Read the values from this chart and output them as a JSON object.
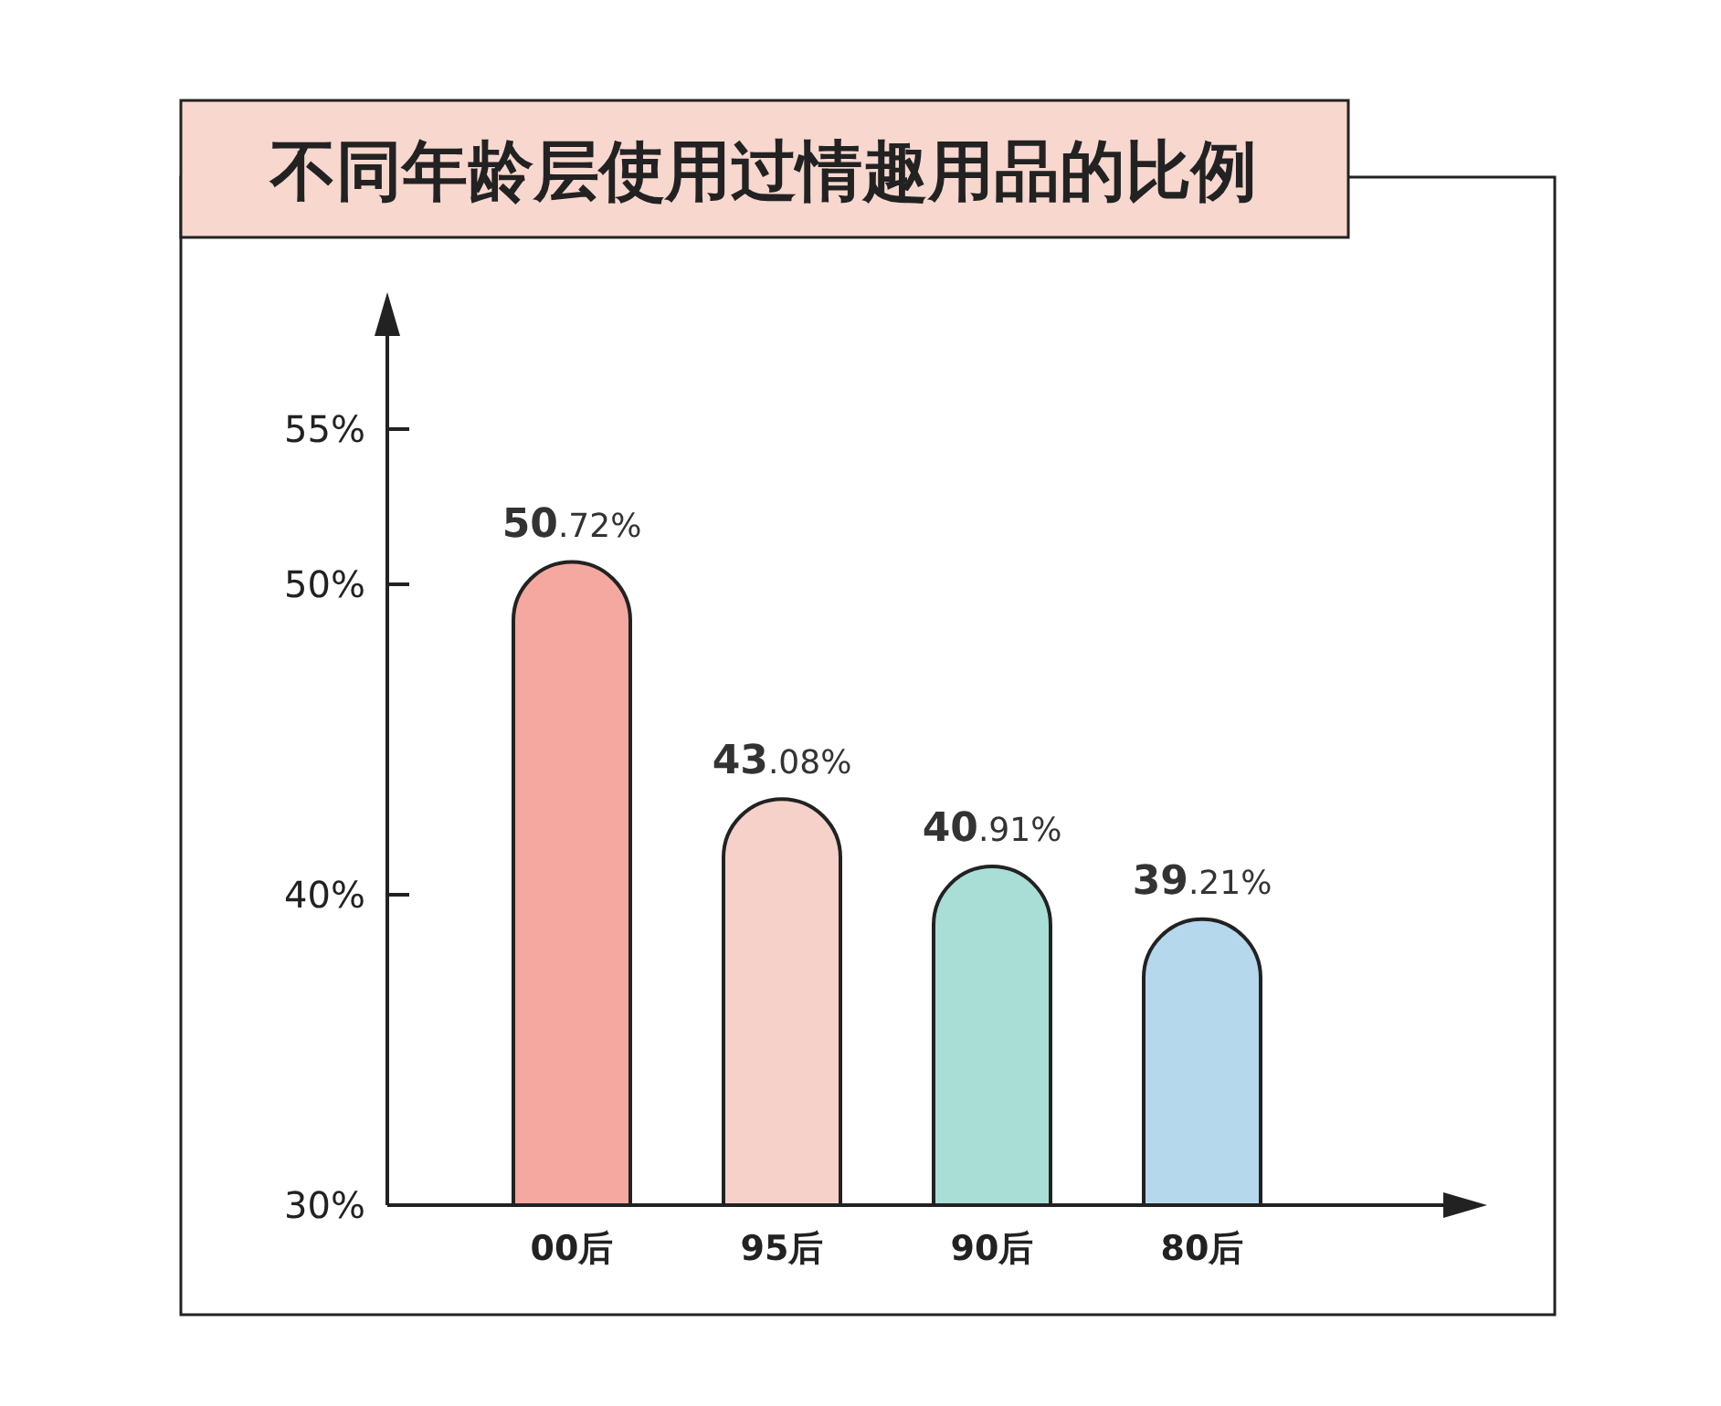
{
  "chart_data": {
    "type": "bar",
    "title": "不同年龄层使用过情趣用品的比例",
    "categories": [
      "00后",
      "95后",
      "90后",
      "80后"
    ],
    "values": [
      50.72,
      43.08,
      40.91,
      39.21
    ],
    "colors": [
      "#f4a8a0",
      "#f5d1c9",
      "#a9ded7",
      "#b6d8ec"
    ],
    "value_labels": [
      "50.72%",
      "43.08%",
      "40.91%",
      "39.21%"
    ],
    "ylim": [
      30,
      58
    ],
    "yticks": [
      {
        "value": 30,
        "label": "30%"
      },
      {
        "value": 40,
        "label": "40%"
      },
      {
        "value": 50,
        "label": "50%"
      },
      {
        "value": 55,
        "label": "55%"
      }
    ],
    "grid": false
  }
}
